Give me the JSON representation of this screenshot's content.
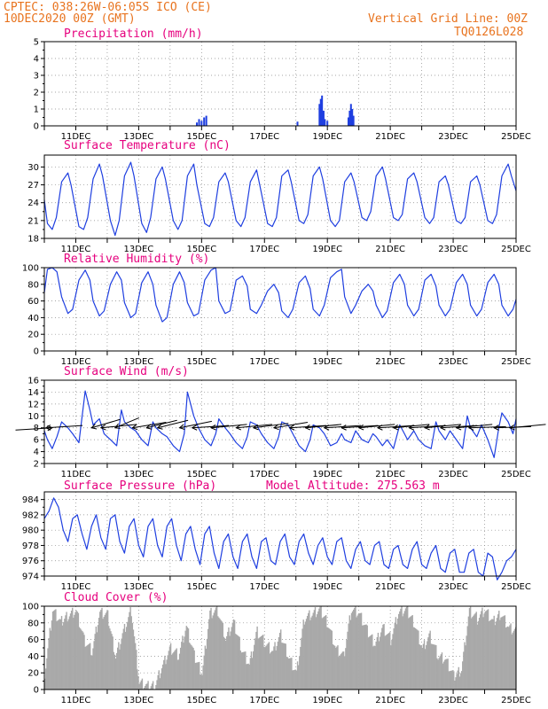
{
  "header": {
    "line1": "CPTEC:  038:26W-06:05S  ICO (CE)",
    "line2": "10DEC2020 00Z (GMT)",
    "grid_note": "Vertical Grid Line: 00Z",
    "model": "TQ0126L028",
    "altitude": "Model Altitude: 275.563 m"
  },
  "colors": {
    "header": "#e8731e",
    "title": "#e6007e",
    "line": "#1f3fe0",
    "cloud": "#a9a9a9",
    "grid": "#888888"
  },
  "x_axis": {
    "day_start": 10,
    "day_end": 25,
    "ticks": [
      {
        "day": 11,
        "label": "11DEC"
      },
      {
        "day": 13,
        "label": "13DEC"
      },
      {
        "day": 15,
        "label": "15DEC"
      },
      {
        "day": 17,
        "label": "17DEC"
      },
      {
        "day": 19,
        "label": "19DEC"
      },
      {
        "day": 21,
        "label": "21DEC"
      },
      {
        "day": 23,
        "label": "23DEC"
      },
      {
        "day": 25,
        "label": "25DEC"
      }
    ]
  },
  "chart_data": [
    {
      "type": "bar",
      "title": "Precipitation (mm/h)",
      "ylim": [
        0,
        5
      ],
      "yticks": [
        "0",
        "1",
        "2",
        "3",
        "4",
        "5"
      ],
      "x": [
        14.85,
        14.92,
        15.0,
        15.08,
        15.15,
        18.05,
        18.75,
        18.79,
        18.83,
        18.88,
        18.92,
        19.0,
        19.67,
        19.71,
        19.75,
        19.79,
        19.83
      ],
      "values": [
        0.2,
        0.4,
        0.3,
        0.5,
        0.6,
        0.25,
        1.3,
        1.6,
        1.8,
        0.9,
        0.4,
        0.3,
        0.5,
        0.9,
        1.3,
        1.0,
        0.6
      ]
    },
    {
      "type": "line",
      "title": "Surface Temperature (nC)",
      "ylim": [
        18,
        32
      ],
      "yticks": [
        "18",
        "21",
        "24",
        "27",
        "30"
      ],
      "x": [
        10.0,
        10.1,
        10.25,
        10.38,
        10.55,
        10.75,
        10.85,
        11.1,
        11.25,
        11.38,
        11.55,
        11.75,
        11.85,
        12.1,
        12.25,
        12.38,
        12.55,
        12.75,
        12.85,
        13.1,
        13.25,
        13.38,
        13.55,
        13.75,
        13.85,
        14.1,
        14.25,
        14.38,
        14.55,
        14.75,
        14.85,
        15.1,
        15.25,
        15.38,
        15.55,
        15.75,
        15.85,
        16.1,
        16.25,
        16.38,
        16.55,
        16.75,
        16.85,
        17.1,
        17.25,
        17.38,
        17.55,
        17.75,
        17.85,
        18.1,
        18.25,
        18.38,
        18.55,
        18.75,
        18.85,
        19.1,
        19.25,
        19.38,
        19.55,
        19.75,
        19.85,
        20.1,
        20.25,
        20.38,
        20.55,
        20.75,
        20.85,
        21.1,
        21.25,
        21.38,
        21.55,
        21.75,
        21.85,
        22.1,
        22.25,
        22.38,
        22.55,
        22.75,
        22.85,
        23.1,
        23.25,
        23.38,
        23.55,
        23.75,
        23.85,
        24.1,
        24.25,
        24.38,
        24.55,
        24.75,
        24.85,
        25.0
      ],
      "values": [
        24.5,
        20.5,
        19.5,
        21.5,
        27.5,
        29.0,
        27.0,
        20.0,
        19.5,
        21.5,
        28.0,
        30.5,
        28.5,
        21.0,
        18.5,
        21.0,
        28.5,
        30.8,
        28.5,
        20.5,
        19.0,
        21.5,
        28.0,
        30.0,
        28.0,
        21.0,
        19.5,
        21.0,
        28.5,
        30.5,
        27.0,
        20.5,
        20.0,
        21.5,
        27.5,
        29.0,
        27.5,
        21.0,
        20.0,
        21.5,
        27.5,
        29.5,
        27.0,
        20.5,
        20.0,
        21.5,
        28.5,
        29.5,
        27.5,
        21.0,
        20.5,
        22.0,
        28.5,
        30.0,
        28.0,
        21.0,
        20.0,
        21.0,
        27.5,
        29.0,
        27.5,
        21.5,
        21.0,
        22.5,
        28.5,
        30.0,
        28.0,
        21.5,
        21.0,
        22.0,
        28.0,
        29.0,
        27.5,
        21.5,
        20.5,
        21.5,
        27.5,
        28.5,
        27.0,
        21.0,
        20.5,
        21.5,
        27.5,
        28.5,
        27.0,
        21.0,
        20.5,
        22.0,
        28.5,
        30.5,
        28.5,
        26.0
      ]
    },
    {
      "type": "line",
      "title": "Relative Humidity (%)",
      "ylim": [
        0,
        100
      ],
      "yticks": [
        "0",
        "20",
        "40",
        "60",
        "80",
        "100"
      ],
      "x": [
        10.0,
        10.1,
        10.25,
        10.4,
        10.55,
        10.75,
        10.9,
        11.1,
        11.3,
        11.45,
        11.55,
        11.75,
        11.9,
        12.1,
        12.3,
        12.45,
        12.55,
        12.75,
        12.9,
        13.1,
        13.3,
        13.45,
        13.55,
        13.75,
        13.9,
        14.1,
        14.3,
        14.45,
        14.55,
        14.75,
        14.9,
        15.1,
        15.3,
        15.45,
        15.55,
        15.75,
        15.9,
        16.1,
        16.3,
        16.45,
        16.55,
        16.75,
        16.9,
        17.1,
        17.3,
        17.45,
        17.55,
        17.75,
        17.9,
        18.1,
        18.3,
        18.45,
        18.55,
        18.75,
        18.9,
        19.1,
        19.3,
        19.45,
        19.55,
        19.75,
        19.9,
        20.1,
        20.3,
        20.45,
        20.55,
        20.75,
        20.9,
        21.1,
        21.3,
        21.45,
        21.55,
        21.75,
        21.9,
        22.1,
        22.3,
        22.45,
        22.55,
        22.75,
        22.9,
        23.1,
        23.3,
        23.45,
        23.55,
        23.75,
        23.9,
        24.1,
        24.3,
        24.45,
        24.55,
        24.75,
        24.9,
        25.0
      ],
      "values": [
        70,
        98,
        100,
        95,
        65,
        45,
        50,
        85,
        97,
        85,
        60,
        42,
        48,
        80,
        95,
        85,
        58,
        40,
        45,
        82,
        95,
        80,
        55,
        35,
        40,
        80,
        95,
        82,
        58,
        42,
        45,
        85,
        97,
        100,
        60,
        45,
        48,
        85,
        90,
        78,
        50,
        45,
        55,
        72,
        80,
        70,
        48,
        40,
        50,
        82,
        90,
        75,
        50,
        42,
        55,
        88,
        95,
        98,
        65,
        45,
        55,
        72,
        80,
        72,
        55,
        40,
        48,
        82,
        92,
        80,
        55,
        42,
        50,
        85,
        92,
        78,
        55,
        42,
        50,
        82,
        92,
        80,
        55,
        42,
        50,
        82,
        92,
        80,
        55,
        42,
        50,
        62
      ]
    },
    {
      "type": "line",
      "title": "Surface Wind (m/s)",
      "ylim": [
        2,
        16
      ],
      "yticks": [
        "2",
        "4",
        "6",
        "8",
        "10",
        "12",
        "14",
        "16"
      ],
      "x": [
        10.0,
        10.1,
        10.25,
        10.4,
        10.55,
        10.75,
        10.9,
        11.1,
        11.3,
        11.45,
        11.55,
        11.75,
        11.9,
        12.1,
        12.3,
        12.45,
        12.55,
        12.75,
        12.9,
        13.1,
        13.3,
        13.45,
        13.55,
        13.75,
        13.9,
        14.1,
        14.3,
        14.45,
        14.55,
        14.75,
        14.9,
        15.1,
        15.3,
        15.45,
        15.55,
        15.75,
        15.9,
        16.1,
        16.3,
        16.45,
        16.55,
        16.75,
        16.9,
        17.1,
        17.3,
        17.45,
        17.55,
        17.75,
        17.9,
        18.1,
        18.3,
        18.45,
        18.55,
        18.75,
        18.9,
        19.1,
        19.3,
        19.45,
        19.55,
        19.75,
        19.9,
        20.1,
        20.3,
        20.45,
        20.55,
        20.75,
        20.9,
        21.1,
        21.3,
        21.45,
        21.55,
        21.75,
        21.9,
        22.1,
        22.3,
        22.45,
        22.55,
        22.75,
        22.9,
        23.1,
        23.3,
        23.45,
        23.55,
        23.75,
        23.9,
        24.1,
        24.3,
        24.45,
        24.55,
        24.75,
        24.9,
        25.0
      ],
      "values": [
        7.5,
        6.0,
        4.5,
        6.5,
        9.0,
        8.0,
        7.0,
        5.5,
        14.2,
        11.0,
        8.5,
        9.5,
        7.0,
        6.0,
        5.0,
        11.0,
        9.0,
        8.0,
        7.5,
        6.0,
        5.0,
        9.0,
        8.0,
        7.0,
        6.5,
        5.0,
        4.0,
        7.0,
        14.0,
        10.0,
        8.0,
        6.0,
        5.0,
        7.0,
        9.5,
        8.0,
        7.0,
        5.5,
        4.5,
        6.5,
        9.0,
        8.5,
        7.0,
        5.5,
        4.5,
        6.5,
        9.0,
        8.5,
        7.0,
        5.0,
        4.0,
        6.0,
        8.5,
        8.0,
        7.0,
        5.0,
        5.5,
        7.0,
        6.0,
        5.5,
        7.5,
        6.0,
        5.5,
        7.0,
        6.5,
        5.0,
        6.0,
        4.5,
        8.5,
        7.0,
        6.0,
        7.5,
        6.0,
        5.0,
        4.5,
        9.0,
        7.5,
        6.0,
        7.5,
        6.0,
        4.5,
        10.0,
        8.0,
        6.5,
        8.5,
        6.0,
        3.0,
        8.0,
        10.5,
        9.0,
        7.0,
        9.5
      ]
    },
    {
      "type": "line",
      "title": "Surface Pressure (hPa)",
      "ylim": [
        974,
        985
      ],
      "yticks": [
        "974",
        "976",
        "978",
        "980",
        "982",
        "984"
      ],
      "x": [
        10.0,
        10.15,
        10.3,
        10.45,
        10.6,
        10.75,
        10.9,
        11.05,
        11.2,
        11.35,
        11.5,
        11.65,
        11.8,
        11.95,
        12.1,
        12.25,
        12.4,
        12.55,
        12.7,
        12.85,
        13.0,
        13.15,
        13.3,
        13.45,
        13.6,
        13.75,
        13.9,
        14.05,
        14.2,
        14.35,
        14.5,
        14.65,
        14.8,
        14.95,
        15.1,
        15.25,
        15.4,
        15.55,
        15.7,
        15.85,
        16.0,
        16.15,
        16.3,
        16.45,
        16.6,
        16.75,
        16.9,
        17.05,
        17.2,
        17.35,
        17.5,
        17.65,
        17.8,
        17.95,
        18.1,
        18.25,
        18.4,
        18.55,
        18.7,
        18.85,
        19.0,
        19.15,
        19.3,
        19.45,
        19.6,
        19.75,
        19.9,
        20.05,
        20.2,
        20.35,
        20.5,
        20.65,
        20.8,
        20.95,
        21.1,
        21.25,
        21.4,
        21.55,
        21.7,
        21.85,
        22.0,
        22.15,
        22.3,
        22.45,
        22.6,
        22.75,
        22.9,
        23.05,
        23.2,
        23.35,
        23.5,
        23.65,
        23.8,
        23.95,
        24.1,
        24.25,
        24.4,
        24.55,
        24.7,
        24.85,
        25.0
      ],
      "values": [
        981.5,
        982.5,
        984.2,
        983.0,
        980.0,
        978.5,
        981.5,
        982.0,
        979.5,
        977.5,
        980.5,
        982.0,
        979.0,
        977.5,
        981.5,
        982.0,
        978.5,
        977.0,
        980.5,
        981.5,
        978.0,
        976.5,
        980.5,
        981.5,
        978.0,
        976.5,
        980.5,
        981.5,
        978.0,
        976.0,
        979.5,
        980.5,
        977.5,
        975.5,
        979.5,
        980.5,
        977.0,
        975.0,
        978.5,
        979.5,
        976.5,
        975.0,
        978.5,
        979.5,
        976.5,
        975.0,
        978.5,
        979.0,
        976.0,
        975.5,
        978.5,
        979.5,
        976.5,
        975.5,
        978.5,
        979.5,
        977.0,
        975.5,
        978.0,
        979.0,
        976.5,
        975.5,
        978.5,
        979.0,
        976.0,
        975.0,
        977.5,
        978.5,
        976.0,
        975.5,
        978.0,
        978.5,
        975.5,
        975.0,
        977.5,
        978.0,
        975.5,
        975.0,
        977.5,
        978.5,
        975.5,
        975.0,
        977.0,
        978.0,
        975.0,
        974.5,
        977.0,
        977.5,
        974.5,
        974.5,
        977.0,
        977.5,
        974.5,
        974.0,
        977.0,
        976.5,
        973.5,
        974.5,
        976.0,
        976.5,
        977.5
      ]
    },
    {
      "type": "area",
      "title": "Cloud Cover (%)",
      "ylim": [
        0,
        100
      ],
      "yticks": [
        "0",
        "20",
        "40",
        "60",
        "80",
        "100"
      ],
      "x": [
        10.0,
        10.25,
        10.5,
        10.75,
        11.0,
        11.25,
        11.5,
        11.75,
        12.0,
        12.25,
        12.5,
        12.75,
        13.0,
        13.25,
        13.5,
        13.75,
        14.0,
        14.25,
        14.5,
        14.75,
        15.0,
        15.25,
        15.5,
        15.75,
        16.0,
        16.25,
        16.5,
        16.75,
        17.0,
        17.25,
        17.5,
        17.75,
        18.0,
        18.25,
        18.5,
        18.75,
        19.0,
        19.25,
        19.5,
        19.75,
        20.0,
        20.25,
        20.5,
        20.75,
        21.0,
        21.25,
        21.5,
        21.75,
        22.0,
        22.25,
        22.5,
        22.75,
        23.0,
        23.25,
        23.5,
        23.75,
        24.0,
        24.25,
        24.5,
        24.75,
        25.0
      ],
      "values": [
        20,
        95,
        80,
        90,
        95,
        60,
        45,
        92,
        88,
        40,
        70,
        95,
        8,
        3,
        5,
        30,
        50,
        40,
        75,
        40,
        20,
        92,
        95,
        60,
        80,
        50,
        30,
        70,
        55,
        45,
        65,
        40,
        20,
        85,
        90,
        95,
        80,
        50,
        40,
        96,
        90,
        70,
        55,
        75,
        60,
        92,
        95,
        80,
        50,
        65,
        40,
        35,
        15,
        25,
        95,
        85,
        95,
        80,
        92,
        75,
        70
      ]
    }
  ],
  "wind_barbs": [
    {
      "day": 10.05,
      "dir": 80
    },
    {
      "day": 10.25,
      "dir": 260
    },
    {
      "day": 11.5,
      "dir": 50
    },
    {
      "day": 11.8,
      "dir": 75
    },
    {
      "day": 12.25,
      "dir": 40
    },
    {
      "day": 12.8,
      "dir": 65
    },
    {
      "day": 13.25,
      "dir": 55
    },
    {
      "day": 13.6,
      "dir": 55
    },
    {
      "day": 14.3,
      "dir": 60
    },
    {
      "day": 14.7,
      "dir": 80
    },
    {
      "day": 15.3,
      "dir": 75
    },
    {
      "day": 16.1,
      "dir": 75
    },
    {
      "day": 16.65,
      "dir": 70
    },
    {
      "day": 17.3,
      "dir": 65
    },
    {
      "day": 17.8,
      "dir": 80
    },
    {
      "day": 18.3,
      "dir": 75
    },
    {
      "day": 18.9,
      "dir": 80
    },
    {
      "day": 19.45,
      "dir": 80
    },
    {
      "day": 20.0,
      "dir": 75
    },
    {
      "day": 20.6,
      "dir": 80
    },
    {
      "day": 21.1,
      "dir": 75
    },
    {
      "day": 21.6,
      "dir": 80
    },
    {
      "day": 22.1,
      "dir": 75
    },
    {
      "day": 22.6,
      "dir": 80
    },
    {
      "day": 23.1,
      "dir": 75
    },
    {
      "day": 23.5,
      "dir": 85
    },
    {
      "day": 24.3,
      "dir": 85
    },
    {
      "day": 24.8,
      "dir": 75
    }
  ]
}
